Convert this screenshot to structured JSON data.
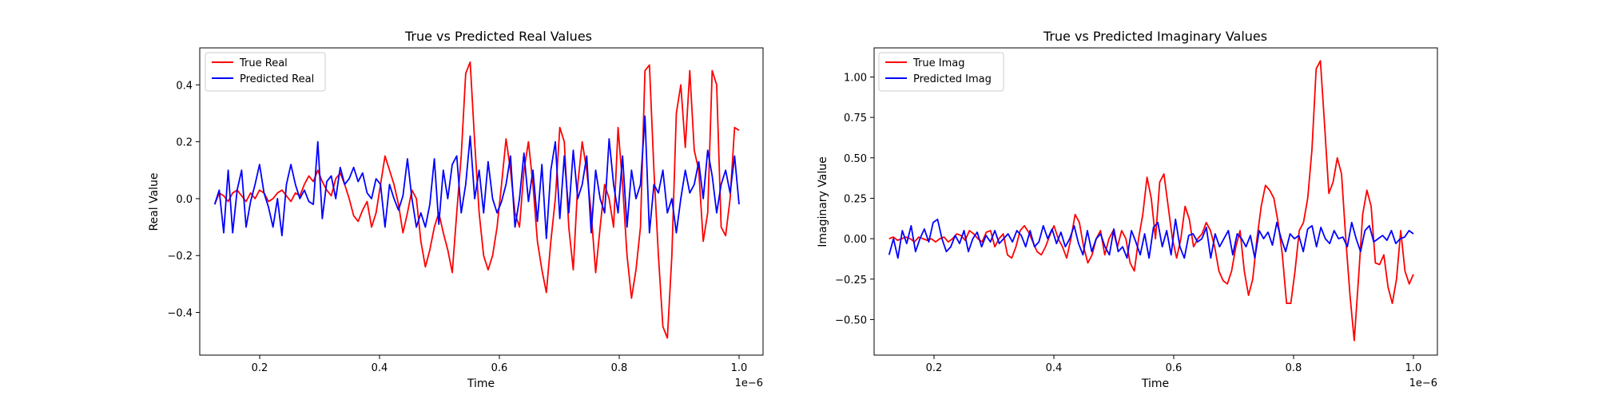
{
  "chart_data": [
    {
      "type": "line",
      "title": "True vs Predicted Real Values",
      "xlabel": "Time",
      "ylabel": "Real Value",
      "x_offset_label": "1e−6",
      "xlim": [
        0.1,
        1.04
      ],
      "ylim": [
        -0.55,
        0.53
      ],
      "x_ticks": [
        0.2,
        0.4,
        0.6,
        0.8,
        1.0
      ],
      "x_tick_labels": [
        "0.2",
        "0.4",
        "0.6",
        "0.8",
        "1.0"
      ],
      "y_ticks": [
        -0.4,
        -0.2,
        0.0,
        0.2,
        0.4
      ],
      "y_tick_labels": [
        "−0.4",
        "−0.2",
        "0.0",
        "0.2",
        "0.4"
      ],
      "grid": false,
      "legend_position": "upper-left",
      "x_start": 0.125,
      "x_end": 1.0,
      "series": [
        {
          "name": "True Real",
          "color": "#ff0000",
          "values": [
            -0.02,
            0.02,
            0.01,
            -0.01,
            0.02,
            0.03,
            0.01,
            -0.01,
            0.02,
            0.0,
            0.03,
            0.02,
            -0.01,
            0.0,
            0.02,
            0.03,
            0.01,
            -0.01,
            0.02,
            0.01,
            0.05,
            0.08,
            0.06,
            0.1,
            0.06,
            0.03,
            0.01,
            0.07,
            0.09,
            0.05,
            0.0,
            -0.06,
            -0.08,
            -0.04,
            -0.01,
            -0.1,
            -0.05,
            0.05,
            0.15,
            0.1,
            0.05,
            -0.02,
            -0.12,
            -0.05,
            0.03,
            0.0,
            -0.15,
            -0.24,
            -0.18,
            -0.1,
            -0.05,
            -0.12,
            -0.18,
            -0.26,
            -0.05,
            0.15,
            0.44,
            0.48,
            0.2,
            -0.05,
            -0.2,
            -0.25,
            -0.2,
            -0.1,
            0.05,
            0.21,
            0.1,
            -0.05,
            -0.1,
            0.1,
            0.2,
            0.05,
            -0.15,
            -0.25,
            -0.33,
            -0.15,
            0.0,
            0.25,
            0.2,
            -0.1,
            -0.25,
            0.05,
            0.2,
            0.1,
            -0.05,
            -0.26,
            -0.1,
            0.05,
            0.0,
            -0.1,
            0.25,
            0.05,
            -0.2,
            -0.35,
            -0.25,
            -0.1,
            0.45,
            0.47,
            0.1,
            -0.2,
            -0.45,
            -0.49,
            -0.2,
            0.3,
            0.4,
            0.18,
            0.45,
            0.17,
            0.1,
            -0.15,
            -0.05,
            0.45,
            0.4,
            -0.1,
            -0.13,
            0.0,
            0.25,
            0.24
          ]
        },
        {
          "name": "Predicted Real",
          "color": "#0000ff",
          "values": [
            -0.02,
            0.03,
            -0.12,
            0.1,
            -0.12,
            0.03,
            0.1,
            -0.1,
            -0.01,
            0.05,
            0.12,
            0.02,
            -0.03,
            -0.1,
            0.0,
            -0.13,
            0.05,
            0.12,
            0.05,
            0.0,
            0.03,
            -0.01,
            -0.02,
            0.2,
            -0.07,
            0.06,
            0.08,
            0.0,
            0.11,
            0.05,
            0.07,
            0.11,
            0.06,
            0.09,
            0.02,
            0.0,
            0.07,
            0.05,
            -0.1,
            0.05,
            0.0,
            -0.04,
            0.01,
            0.14,
            0.0,
            -0.1,
            -0.05,
            -0.1,
            -0.02,
            0.14,
            -0.09,
            0.1,
            0.0,
            0.12,
            0.15,
            -0.05,
            0.05,
            0.22,
            0.0,
            0.1,
            -0.05,
            0.13,
            0.0,
            -0.05,
            -0.01,
            0.05,
            0.15,
            -0.1,
            0.0,
            0.16,
            -0.01,
            0.1,
            -0.08,
            0.12,
            -0.14,
            0.1,
            0.2,
            -0.07,
            0.15,
            -0.05,
            0.17,
            0.0,
            0.05,
            0.15,
            -0.12,
            0.1,
            0.0,
            -0.05,
            0.21,
            0.05,
            -0.05,
            0.15,
            -0.1,
            0.1,
            0.0,
            0.05,
            0.29,
            -0.12,
            0.05,
            0.02,
            0.1,
            -0.05,
            0.0,
            -0.12,
            0.0,
            0.1,
            0.02,
            0.05,
            0.13,
            0.0,
            0.17,
            0.08,
            -0.05,
            0.05,
            0.1,
            0.02,
            0.15,
            -0.02
          ]
        }
      ]
    },
    {
      "type": "line",
      "title": "True vs Predicted Imaginary Values",
      "xlabel": "Time",
      "ylabel": "Imaginary Value",
      "x_offset_label": "1e−6",
      "xlim": [
        0.1,
        1.04
      ],
      "ylim": [
        -0.72,
        1.18
      ],
      "x_ticks": [
        0.2,
        0.4,
        0.6,
        0.8,
        1.0
      ],
      "x_tick_labels": [
        "0.2",
        "0.4",
        "0.6",
        "0.8",
        "1.0"
      ],
      "y_ticks": [
        -0.5,
        -0.25,
        0.0,
        0.25,
        0.5,
        0.75,
        1.0
      ],
      "y_tick_labels": [
        "−0.50",
        "−0.25",
        "0.00",
        "0.25",
        "0.50",
        "0.75",
        "1.00"
      ],
      "grid": false,
      "legend_position": "upper-left",
      "x_start": 0.125,
      "x_end": 1.0,
      "series": [
        {
          "name": "True Imag",
          "color": "#ff0000",
          "values": [
            0.0,
            0.01,
            -0.01,
            0.0,
            0.01,
            0.0,
            -0.02,
            0.01,
            0.0,
            -0.01,
            0.0,
            -0.02,
            0.0,
            0.01,
            -0.02,
            0.0,
            0.03,
            0.02,
            -0.01,
            0.05,
            0.03,
            0.0,
            -0.02,
            0.04,
            0.05,
            -0.05,
            0.0,
            0.03,
            -0.1,
            -0.12,
            -0.05,
            0.05,
            0.08,
            0.04,
            -0.02,
            -0.08,
            -0.1,
            -0.05,
            0.02,
            0.08,
            0.0,
            -0.05,
            -0.12,
            0.0,
            0.15,
            0.1,
            -0.05,
            -0.15,
            -0.1,
            0.0,
            0.05,
            -0.1,
            0.0,
            0.05,
            -0.05,
            0.05,
            0.0,
            -0.15,
            -0.2,
            0.0,
            0.15,
            0.38,
            0.25,
            0.0,
            0.35,
            0.4,
            0.2,
            0.0,
            -0.12,
            0.0,
            0.2,
            0.12,
            -0.05,
            0.0,
            0.03,
            0.1,
            0.05,
            -0.05,
            -0.2,
            -0.26,
            -0.28,
            -0.2,
            -0.05,
            0.05,
            -0.2,
            -0.35,
            -0.25,
            0.0,
            0.2,
            0.33,
            0.3,
            0.25,
            0.1,
            -0.1,
            -0.4,
            -0.4,
            -0.2,
            0.05,
            0.1,
            0.25,
            0.55,
            1.05,
            1.1,
            0.7,
            0.28,
            0.35,
            0.5,
            0.4,
            0.0,
            -0.35,
            -0.63,
            -0.25,
            0.15,
            0.3,
            0.2,
            -0.15,
            -0.16,
            -0.1,
            -0.3,
            -0.4,
            -0.25,
            0.05,
            -0.2,
            -0.28,
            -0.22
          ]
        },
        {
          "name": "Predicted Imag",
          "color": "#0000ff",
          "values": [
            -0.1,
            0.0,
            -0.12,
            0.05,
            -0.03,
            0.08,
            -0.08,
            0.0,
            0.06,
            -0.02,
            0.1,
            0.12,
            0.0,
            -0.08,
            -0.05,
            0.02,
            -0.03,
            0.05,
            -0.08,
            0.0,
            0.04,
            -0.05,
            0.02,
            -0.02,
            0.05,
            -0.03,
            0.0,
            0.03,
            -0.02,
            0.05,
            0.02,
            -0.05,
            0.05,
            -0.05,
            -0.02,
            0.08,
            0.0,
            0.06,
            -0.03,
            0.04,
            -0.05,
            0.0,
            0.08,
            -0.03,
            -0.1,
            0.05,
            -0.08,
            0.0,
            0.03,
            -0.05,
            -0.1,
            0.06,
            -0.08,
            -0.05,
            -0.12,
            0.05,
            -0.02,
            -0.1,
            0.03,
            -0.12,
            0.07,
            0.1,
            -0.05,
            0.05,
            -0.1,
            0.12,
            -0.05,
            -0.12,
            0.02,
            0.03,
            -0.02,
            0.0,
            0.07,
            -0.12,
            0.03,
            -0.05,
            0.0,
            0.05,
            -0.1,
            0.03,
            0.0,
            -0.05,
            0.02,
            -0.12,
            0.05,
            0.0,
            0.04,
            -0.04,
            0.1,
            0.0,
            -0.08,
            0.03,
            0.0,
            0.02,
            -0.08,
            0.06,
            0.08,
            -0.05,
            0.07,
            0.0,
            -0.03,
            0.05,
            0.0,
            0.01,
            -0.05,
            0.1,
            0.0,
            -0.08,
            0.05,
            0.08,
            -0.02,
            0.0,
            0.02,
            -0.01,
            0.05,
            -0.03,
            0.0,
            0.01,
            0.05,
            0.03
          ]
        }
      ]
    }
  ]
}
